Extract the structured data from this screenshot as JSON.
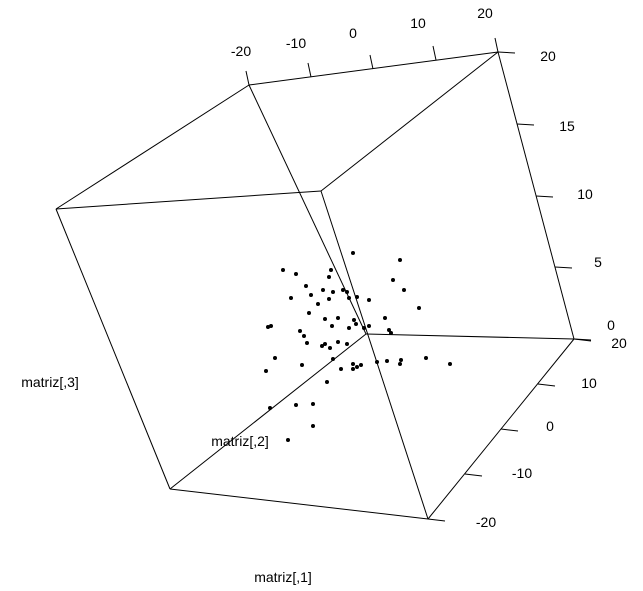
{
  "chart_data": {
    "type": "scatter",
    "projection": "3d",
    "title": "",
    "colors": {
      "points": "#000000",
      "box": "#000000",
      "background": "#ffffff"
    },
    "axes": {
      "x": {
        "label": "matriz[,1]",
        "ticks": [
          "-20",
          "-10",
          "0",
          "10",
          "20"
        ],
        "tick_values": [
          -20,
          -10,
          0,
          10,
          20
        ],
        "range": [
          -20,
          20
        ]
      },
      "y": {
        "label": "matriz[,2]",
        "ticks": [
          "-20",
          "-10",
          "0",
          "10",
          "20"
        ],
        "tick_values": [
          -20,
          -10,
          0,
          10,
          20
        ],
        "range": [
          -20,
          20
        ]
      },
      "z": {
        "label": "matriz[,3]",
        "ticks": [
          "0",
          "5",
          "10",
          "15",
          "20"
        ],
        "tick_values": [
          0,
          5,
          10,
          15,
          20
        ],
        "range": [
          0,
          20
        ]
      }
    },
    "projected_points": [
      [
        283,
        270
      ],
      [
        296,
        274
      ],
      [
        331,
        270
      ],
      [
        353,
        253
      ],
      [
        400,
        260
      ],
      [
        329,
        277
      ],
      [
        306,
        286
      ],
      [
        323,
        290
      ],
      [
        333,
        292
      ],
      [
        343,
        290
      ],
      [
        347,
        292
      ],
      [
        357,
        297
      ],
      [
        311,
        295
      ],
      [
        329,
        299
      ],
      [
        349,
        298
      ],
      [
        369,
        300
      ],
      [
        393,
        280
      ],
      [
        404,
        290
      ],
      [
        318,
        304
      ],
      [
        291,
        298
      ],
      [
        419,
        308
      ],
      [
        309,
        313
      ],
      [
        325,
        319
      ],
      [
        338,
        318
      ],
      [
        354,
        320
      ],
      [
        356,
        324
      ],
      [
        364,
        328
      ],
      [
        385,
        318
      ],
      [
        268,
        327
      ],
      [
        271,
        326
      ],
      [
        300,
        331
      ],
      [
        304,
        336
      ],
      [
        332,
        326
      ],
      [
        349,
        328
      ],
      [
        369,
        326
      ],
      [
        389,
        330
      ],
      [
        391,
        333
      ],
      [
        307,
        343
      ],
      [
        325,
        344
      ],
      [
        338,
        342
      ],
      [
        347,
        344
      ],
      [
        322,
        346
      ],
      [
        330,
        348
      ],
      [
        275,
        358
      ],
      [
        302,
        365
      ],
      [
        333,
        359
      ],
      [
        353,
        364
      ],
      [
        361,
        365
      ],
      [
        377,
        362
      ],
      [
        387,
        361
      ],
      [
        401,
        360
      ],
      [
        400,
        364
      ],
      [
        426,
        358
      ],
      [
        450,
        364
      ],
      [
        266,
        371
      ],
      [
        341,
        369
      ],
      [
        353,
        369
      ],
      [
        357,
        367
      ],
      [
        327,
        382
      ],
      [
        270,
        408
      ],
      [
        296,
        405
      ],
      [
        313,
        404
      ],
      [
        313,
        426
      ],
      [
        288,
        440
      ]
    ]
  }
}
